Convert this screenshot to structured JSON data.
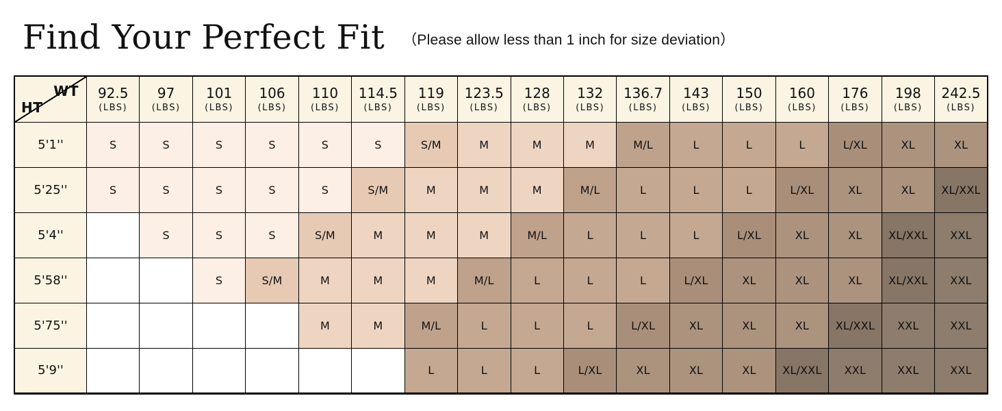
{
  "page": {
    "subtitle": "（Please allow less than 1 inch for size deviation）"
  },
  "chart_data": {
    "type": "table",
    "title": "Find Your Perfect Fit",
    "corner": {
      "col_label": "WT",
      "row_label": "HT"
    },
    "unit_label": "(LBS)",
    "columns_weight_lbs": [
      "92.5",
      "97",
      "101",
      "106",
      "110",
      "114.5",
      "119",
      "123.5",
      "128",
      "132",
      "136.7",
      "143",
      "150",
      "160",
      "176",
      "198",
      "242.5"
    ],
    "rows": [
      {
        "height": "5'1''",
        "sizes": [
          "S",
          "S",
          "S",
          "S",
          "S",
          "S",
          "S/M",
          "M",
          "M",
          "M",
          "M/L",
          "L",
          "L",
          "L",
          "L/XL",
          "XL",
          "XL"
        ]
      },
      {
        "height": "5'25''",
        "sizes": [
          "S",
          "S",
          "S",
          "S",
          "S",
          "S/M",
          "M",
          "M",
          "M",
          "M/L",
          "L",
          "L",
          "L",
          "L/XL",
          "XL",
          "XL",
          "XL/XXL"
        ]
      },
      {
        "height": "5'4''",
        "sizes": [
          "",
          "S",
          "S",
          "S",
          "S/M",
          "M",
          "M",
          "M",
          "M/L",
          "L",
          "L",
          "L",
          "L/XL",
          "XL",
          "XL",
          "XL/XXL",
          "XXL"
        ]
      },
      {
        "height": "5'58''",
        "sizes": [
          "",
          "",
          "S",
          "S/M",
          "M",
          "M",
          "M",
          "M/L",
          "L",
          "L",
          "L",
          "L/XL",
          "XL",
          "XL",
          "XL",
          "XL/XXL",
          "XXL"
        ]
      },
      {
        "height": "5'75''",
        "sizes": [
          "",
          "",
          "",
          "",
          "M",
          "M",
          "M/L",
          "L",
          "L",
          "L",
          "L/XL",
          "XL",
          "XL",
          "XL",
          "XL/XXL",
          "XXL",
          "XXL"
        ]
      },
      {
        "height": "5'9''",
        "sizes": [
          "",
          "",
          "",
          "",
          "",
          "",
          "L",
          "L",
          "L",
          "L/XL",
          "XL",
          "XL",
          "XL",
          "XL/XXL",
          "XXL",
          "XXL",
          "XXL"
        ]
      }
    ]
  },
  "colors": {
    "header_bg": "#fbf4e3",
    "border": "#000000",
    "empty_cell": "#ffffff",
    "size_fill": {
      "S": "#fcefe5",
      "S/M": "#e7cab4",
      "M": "#eed5c2",
      "M/L": "#bfa28c",
      "L": "#c4a892",
      "L/XL": "#a98f7a",
      "XL": "#ab937e",
      "XL/XXL": "#877565",
      "XXL": "#8e7d6c"
    }
  }
}
